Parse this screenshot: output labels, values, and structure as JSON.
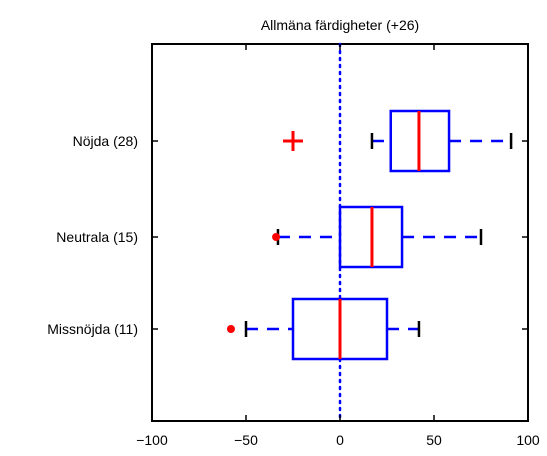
{
  "chart_data": {
    "type": "boxplot",
    "orientation": "horizontal",
    "title": "Allmäna färdigheter (+26)",
    "xlim": [
      -100,
      100
    ],
    "xticks": [
      -100,
      -50,
      0,
      50,
      100
    ],
    "xtick_labels": [
      "−100",
      "−50",
      "0",
      "50",
      "100"
    ],
    "reference_line": {
      "x": 0,
      "style": "dotted",
      "color": "#0000ff"
    },
    "box_color": "#0000ff",
    "median_color": "#ff0000",
    "outlier_color": "#ff0000",
    "groups": [
      {
        "label": "Nöjda (28)",
        "whisker_low": 17,
        "q1": 27,
        "median": 42,
        "q3": 58,
        "whisker_high": 91,
        "outliers": [
          {
            "value": -25,
            "marker": "plus"
          }
        ]
      },
      {
        "label": "Neutrala (15)",
        "whisker_low": -33,
        "q1": 0,
        "median": 17,
        "q3": 33,
        "whisker_high": 75,
        "outliers": [
          {
            "value": -34,
            "marker": "dot"
          }
        ]
      },
      {
        "label": "Missnöjda (11)",
        "whisker_low": -50,
        "q1": -25,
        "median": 0,
        "q3": 25,
        "whisker_high": 42,
        "outliers": [
          {
            "value": -58,
            "marker": "dot"
          }
        ]
      }
    ]
  }
}
